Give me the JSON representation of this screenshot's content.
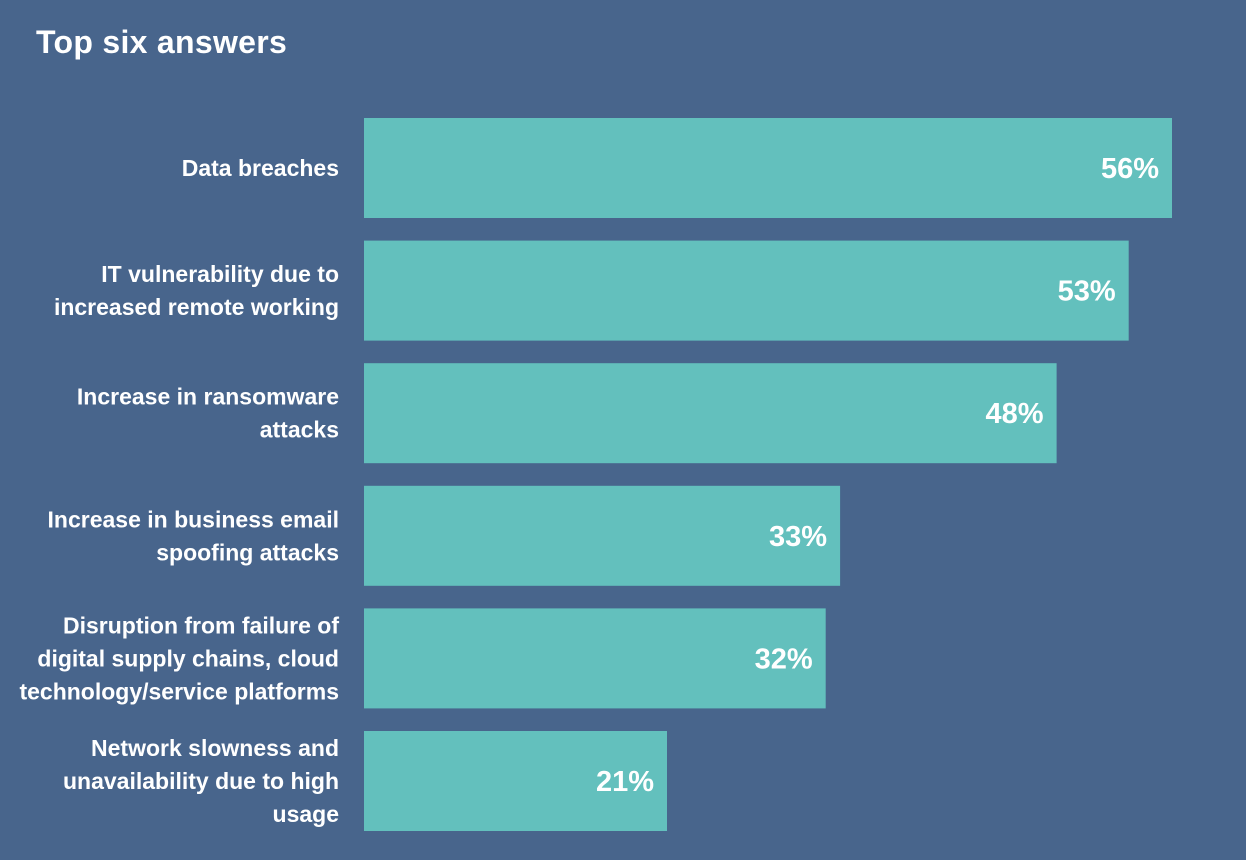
{
  "chart_data": {
    "type": "bar",
    "orientation": "horizontal",
    "title": "Top six answers",
    "categories": [
      "Data breaches",
      "IT vulnerability due to increased remote working",
      "Increase in ransomware attacks",
      "Increase in business email spoofing attacks",
      "Disruption from failure of digital supply chains, cloud technology/service platforms",
      "Network slowness and unavailability due to high usage"
    ],
    "category_lines": [
      [
        "Data breaches"
      ],
      [
        "IT vulnerability due to",
        "increased remote working"
      ],
      [
        "Increase in ransomware",
        "attacks"
      ],
      [
        "Increase in business email",
        "spoofing attacks"
      ],
      [
        "Disruption from failure of",
        "digital supply chains, cloud",
        "technology/service platforms"
      ],
      [
        "Network slowness and",
        "unavailability due to high",
        "usage"
      ]
    ],
    "values": [
      56,
      53,
      48,
      33,
      32,
      21
    ],
    "value_labels": [
      "56%",
      "53%",
      "48%",
      "33%",
      "32%",
      "21%"
    ],
    "unit": "%",
    "xlim": [
      0,
      56
    ],
    "grid": false,
    "legend": "none",
    "colors": {
      "background": "#48658c",
      "bar": "#63c0bd",
      "text": "#ffffff"
    }
  }
}
